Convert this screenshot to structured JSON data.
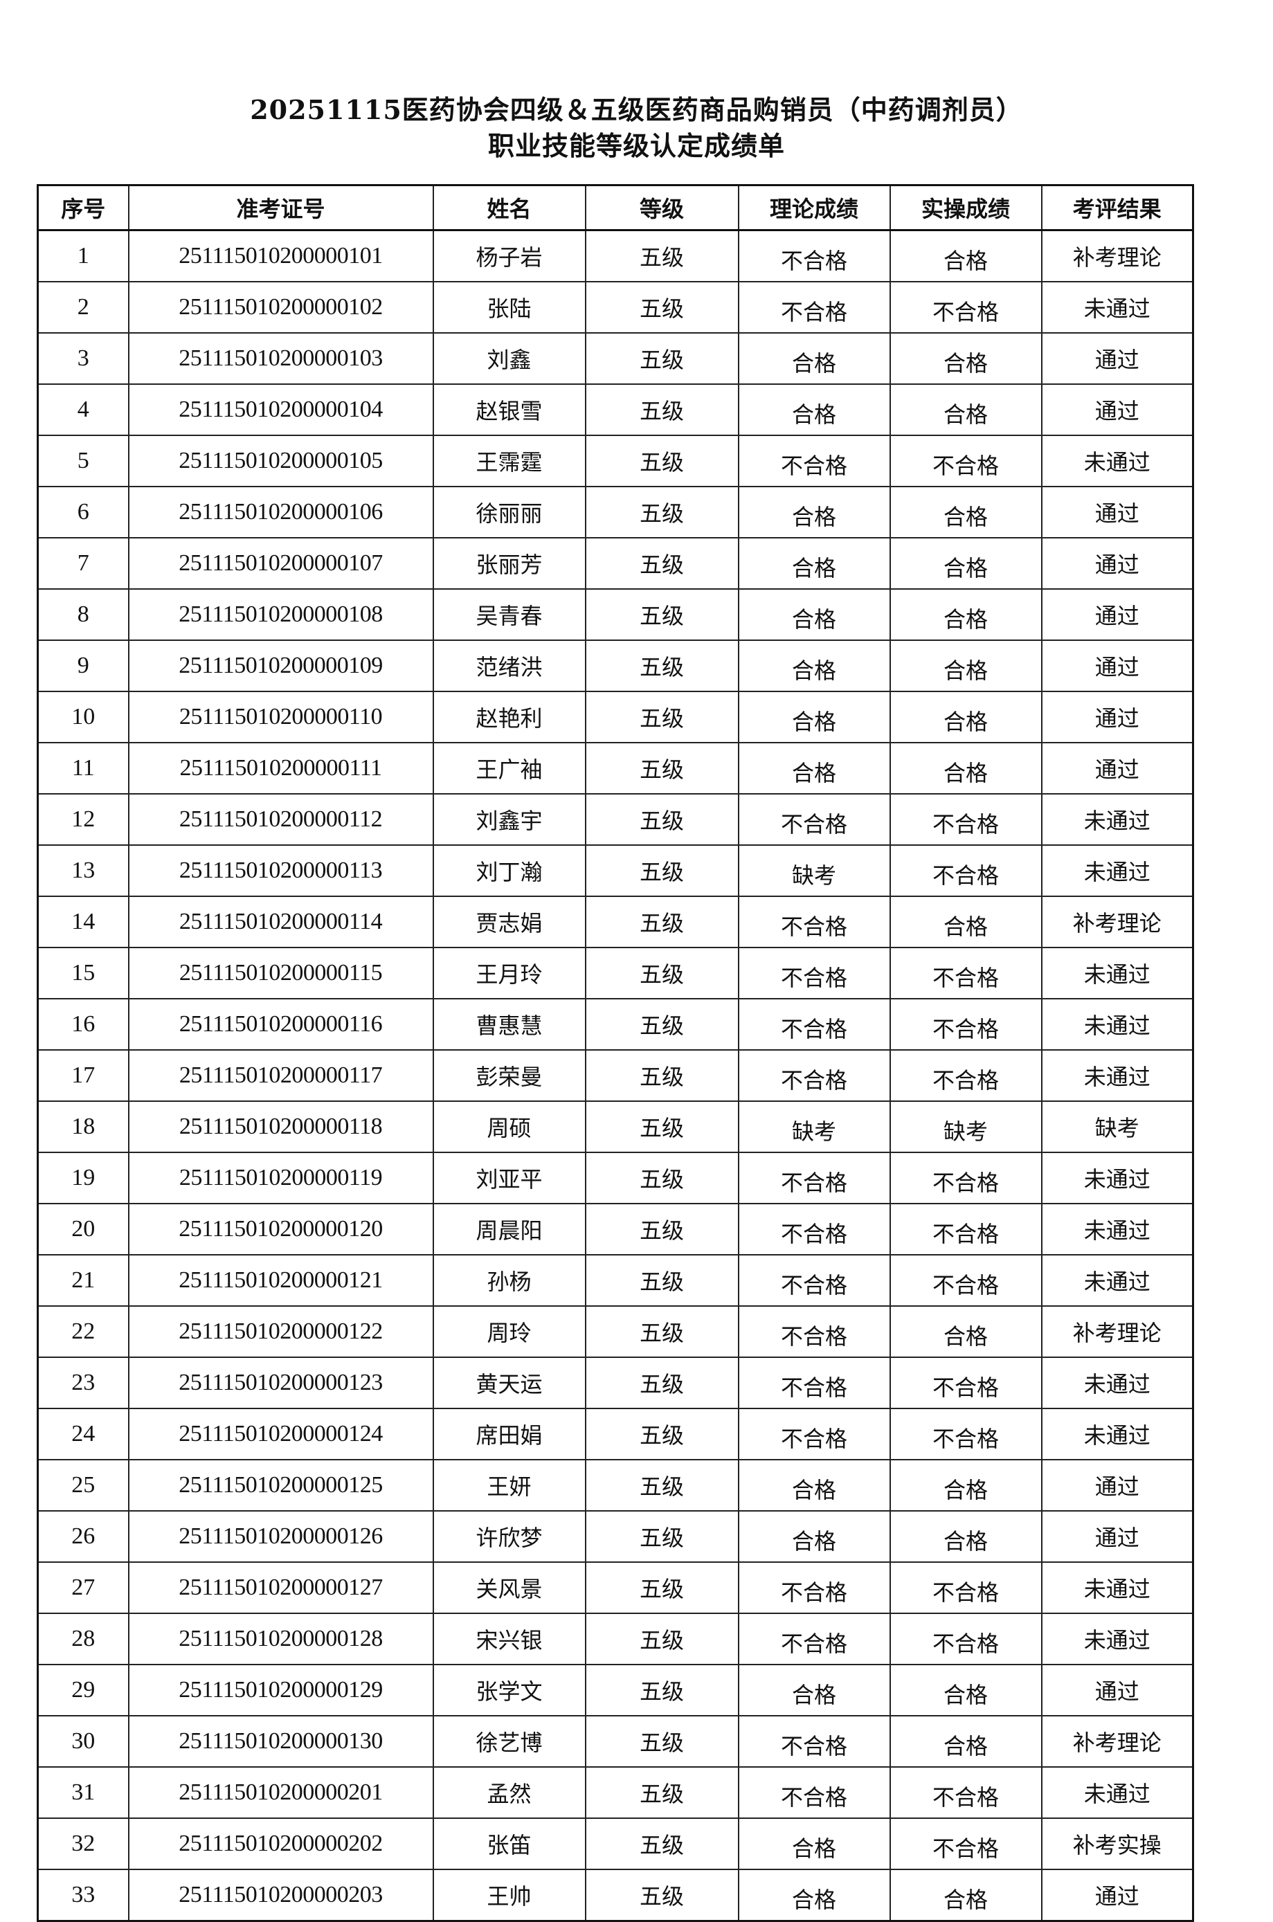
{
  "title_line1": "20251115医药协会四级＆五级医药商品购销员（中药调剂员）",
  "title_line2": "职业技能等级认定成绩单",
  "columns": [
    "序号",
    "准考证号",
    "姓名",
    "等级",
    "理论成绩",
    "实操成绩",
    "考评结果"
  ],
  "rows": [
    [
      "1",
      "251115010200000101",
      "杨子岩",
      "五级",
      "不合格",
      "合格",
      "补考理论"
    ],
    [
      "2",
      "251115010200000102",
      "张陆",
      "五级",
      "不合格",
      "不合格",
      "未通过"
    ],
    [
      "3",
      "251115010200000103",
      "刘鑫",
      "五级",
      "合格",
      "合格",
      "通过"
    ],
    [
      "4",
      "251115010200000104",
      "赵银雪",
      "五级",
      "合格",
      "合格",
      "通过"
    ],
    [
      "5",
      "251115010200000105",
      "王霈霆",
      "五级",
      "不合格",
      "不合格",
      "未通过"
    ],
    [
      "6",
      "251115010200000106",
      "徐丽丽",
      "五级",
      "合格",
      "合格",
      "通过"
    ],
    [
      "7",
      "251115010200000107",
      "张丽芳",
      "五级",
      "合格",
      "合格",
      "通过"
    ],
    [
      "8",
      "251115010200000108",
      "吴青春",
      "五级",
      "合格",
      "合格",
      "通过"
    ],
    [
      "9",
      "251115010200000109",
      "范绪洪",
      "五级",
      "合格",
      "合格",
      "通过"
    ],
    [
      "10",
      "251115010200000110",
      "赵艳利",
      "五级",
      "合格",
      "合格",
      "通过"
    ],
    [
      "11",
      "251115010200000111",
      "王广袖",
      "五级",
      "合格",
      "合格",
      "通过"
    ],
    [
      "12",
      "251115010200000112",
      "刘鑫宇",
      "五级",
      "不合格",
      "不合格",
      "未通过"
    ],
    [
      "13",
      "251115010200000113",
      "刘丁瀚",
      "五级",
      "缺考",
      "不合格",
      "未通过"
    ],
    [
      "14",
      "251115010200000114",
      "贾志娟",
      "五级",
      "不合格",
      "合格",
      "补考理论"
    ],
    [
      "15",
      "251115010200000115",
      "王月玲",
      "五级",
      "不合格",
      "不合格",
      "未通过"
    ],
    [
      "16",
      "251115010200000116",
      "曹惠慧",
      "五级",
      "不合格",
      "不合格",
      "未通过"
    ],
    [
      "17",
      "251115010200000117",
      "彭荣曼",
      "五级",
      "不合格",
      "不合格",
      "未通过"
    ],
    [
      "18",
      "251115010200000118",
      "周硕",
      "五级",
      "缺考",
      "缺考",
      "缺考"
    ],
    [
      "19",
      "251115010200000119",
      "刘亚平",
      "五级",
      "不合格",
      "不合格",
      "未通过"
    ],
    [
      "20",
      "251115010200000120",
      "周晨阳",
      "五级",
      "不合格",
      "不合格",
      "未通过"
    ],
    [
      "21",
      "251115010200000121",
      "孙杨",
      "五级",
      "不合格",
      "不合格",
      "未通过"
    ],
    [
      "22",
      "251115010200000122",
      "周玲",
      "五级",
      "不合格",
      "合格",
      "补考理论"
    ],
    [
      "23",
      "251115010200000123",
      "黄天运",
      "五级",
      "不合格",
      "不合格",
      "未通过"
    ],
    [
      "24",
      "251115010200000124",
      "席田娟",
      "五级",
      "不合格",
      "不合格",
      "未通过"
    ],
    [
      "25",
      "251115010200000125",
      "王妍",
      "五级",
      "合格",
      "合格",
      "通过"
    ],
    [
      "26",
      "251115010200000126",
      "许欣梦",
      "五级",
      "合格",
      "合格",
      "通过"
    ],
    [
      "27",
      "251115010200000127",
      "关风景",
      "五级",
      "不合格",
      "不合格",
      "未通过"
    ],
    [
      "28",
      "251115010200000128",
      "宋兴银",
      "五级",
      "不合格",
      "不合格",
      "未通过"
    ],
    [
      "29",
      "251115010200000129",
      "张学文",
      "五级",
      "合格",
      "合格",
      "通过"
    ],
    [
      "30",
      "251115010200000130",
      "徐艺博",
      "五级",
      "不合格",
      "合格",
      "补考理论"
    ],
    [
      "31",
      "251115010200000201",
      "孟然",
      "五级",
      "不合格",
      "不合格",
      "未通过"
    ],
    [
      "32",
      "251115010200000202",
      "张笛",
      "五级",
      "合格",
      "不合格",
      "补考实操"
    ],
    [
      "33",
      "251115010200000203",
      "王帅",
      "五级",
      "合格",
      "合格",
      "通过"
    ]
  ]
}
